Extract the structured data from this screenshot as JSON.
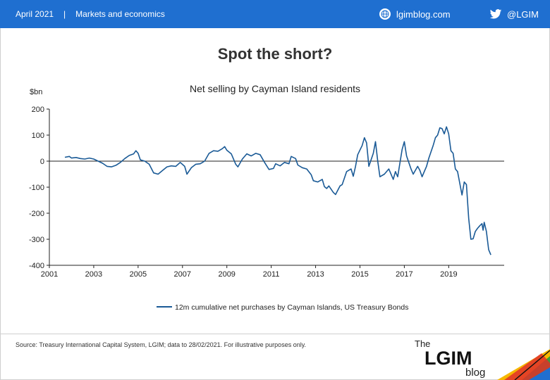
{
  "header": {
    "date": "April 2021",
    "separator": "|",
    "section": "Markets and economics",
    "site": "lgimblog.com",
    "twitter": "@LGIM",
    "bar_color": "#1f6fd0"
  },
  "title": "Spot the short?",
  "footer": {
    "source": "Source: Treasury International Capital System, LGIM;  data to 28/02/2021. For illustrative purposes only."
  },
  "logo": {
    "line1": "The",
    "line2": "LGIM",
    "line3": "blog"
  },
  "icons": {
    "site": "globe-icon",
    "twitter": "twitter-bird-icon"
  },
  "chart_data": {
    "type": "line",
    "title": "Net selling by Cayman Island residents",
    "ylabel": "$bn",
    "ylim": [
      -400,
      200
    ],
    "yticks": [
      200,
      100,
      0,
      -100,
      -200,
      -300,
      -400
    ],
    "xlim": [
      2001,
      2021.5
    ],
    "xticks": [
      2001,
      2003,
      2005,
      2007,
      2009,
      2011,
      2013,
      2015,
      2017,
      2019
    ],
    "legend_position": "bottom",
    "series": [
      {
        "name": "12m cumulative net purchases by Cayman Islands, US Treasury Bonds",
        "color": "#1a5a96",
        "points": [
          [
            2001.7,
            15
          ],
          [
            2001.9,
            18
          ],
          [
            2002.0,
            12
          ],
          [
            2002.2,
            14
          ],
          [
            2002.4,
            10
          ],
          [
            2002.6,
            8
          ],
          [
            2002.8,
            12
          ],
          [
            2003.0,
            8
          ],
          [
            2003.2,
            0
          ],
          [
            2003.4,
            -8
          ],
          [
            2003.6,
            -20
          ],
          [
            2003.8,
            -22
          ],
          [
            2004.0,
            -16
          ],
          [
            2004.2,
            -5
          ],
          [
            2004.4,
            10
          ],
          [
            2004.6,
            22
          ],
          [
            2004.8,
            28
          ],
          [
            2004.9,
            40
          ],
          [
            2005.0,
            30
          ],
          [
            2005.1,
            5
          ],
          [
            2005.3,
            0
          ],
          [
            2005.5,
            -12
          ],
          [
            2005.7,
            -45
          ],
          [
            2005.9,
            -50
          ],
          [
            2006.1,
            -36
          ],
          [
            2006.3,
            -22
          ],
          [
            2006.5,
            -18
          ],
          [
            2006.7,
            -20
          ],
          [
            2006.9,
            -5
          ],
          [
            2007.1,
            -20
          ],
          [
            2007.2,
            -50
          ],
          [
            2007.4,
            -25
          ],
          [
            2007.6,
            -12
          ],
          [
            2007.8,
            -10
          ],
          [
            2008.0,
            0
          ],
          [
            2008.2,
            30
          ],
          [
            2008.4,
            40
          ],
          [
            2008.6,
            38
          ],
          [
            2008.8,
            48
          ],
          [
            2008.9,
            56
          ],
          [
            2009.0,
            42
          ],
          [
            2009.2,
            28
          ],
          [
            2009.4,
            -12
          ],
          [
            2009.5,
            -22
          ],
          [
            2009.7,
            8
          ],
          [
            2009.9,
            28
          ],
          [
            2010.1,
            20
          ],
          [
            2010.3,
            30
          ],
          [
            2010.5,
            25
          ],
          [
            2010.7,
            -5
          ],
          [
            2010.9,
            -32
          ],
          [
            2011.1,
            -28
          ],
          [
            2011.2,
            -10
          ],
          [
            2011.4,
            -18
          ],
          [
            2011.6,
            -5
          ],
          [
            2011.8,
            -10
          ],
          [
            2011.9,
            18
          ],
          [
            2012.1,
            10
          ],
          [
            2012.2,
            -15
          ],
          [
            2012.4,
            -25
          ],
          [
            2012.6,
            -30
          ],
          [
            2012.8,
            -52
          ],
          [
            2012.9,
            -75
          ],
          [
            2013.1,
            -80
          ],
          [
            2013.3,
            -70
          ],
          [
            2013.4,
            -98
          ],
          [
            2013.5,
            -105
          ],
          [
            2013.6,
            -95
          ],
          [
            2013.8,
            -120
          ],
          [
            2013.9,
            -128
          ],
          [
            2014.1,
            -95
          ],
          [
            2014.2,
            -90
          ],
          [
            2014.4,
            -40
          ],
          [
            2014.6,
            -30
          ],
          [
            2014.7,
            -58
          ],
          [
            2014.8,
            -20
          ],
          [
            2014.9,
            25
          ],
          [
            2015.1,
            60
          ],
          [
            2015.2,
            90
          ],
          [
            2015.3,
            70
          ],
          [
            2015.4,
            -20
          ],
          [
            2015.6,
            30
          ],
          [
            2015.7,
            75
          ],
          [
            2015.8,
            0
          ],
          [
            2015.9,
            -60
          ],
          [
            2016.1,
            -50
          ],
          [
            2016.3,
            -30
          ],
          [
            2016.5,
            -70
          ],
          [
            2016.6,
            -40
          ],
          [
            2016.7,
            -60
          ],
          [
            2016.9,
            45
          ],
          [
            2017.0,
            75
          ],
          [
            2017.1,
            20
          ],
          [
            2017.3,
            -30
          ],
          [
            2017.4,
            -50
          ],
          [
            2017.6,
            -20
          ],
          [
            2017.7,
            -35
          ],
          [
            2017.8,
            -60
          ],
          [
            2017.9,
            -40
          ],
          [
            2018.0,
            -20
          ],
          [
            2018.1,
            10
          ],
          [
            2018.3,
            60
          ],
          [
            2018.4,
            90
          ],
          [
            2018.5,
            100
          ],
          [
            2018.6,
            128
          ],
          [
            2018.7,
            125
          ],
          [
            2018.8,
            105
          ],
          [
            2018.9,
            132
          ],
          [
            2019.0,
            105
          ],
          [
            2019.1,
            40
          ],
          [
            2019.2,
            30
          ],
          [
            2019.3,
            -30
          ],
          [
            2019.4,
            -40
          ],
          [
            2019.6,
            -130
          ],
          [
            2019.7,
            -80
          ],
          [
            2019.8,
            -90
          ],
          [
            2019.9,
            -220
          ],
          [
            2020.0,
            -300
          ],
          [
            2020.1,
            -298
          ],
          [
            2020.2,
            -270
          ],
          [
            2020.3,
            -258
          ],
          [
            2020.4,
            -248
          ],
          [
            2020.5,
            -240
          ],
          [
            2020.55,
            -265
          ],
          [
            2020.6,
            -235
          ],
          [
            2020.7,
            -270
          ],
          [
            2020.8,
            -340
          ],
          [
            2020.9,
            -360
          ]
        ]
      }
    ]
  }
}
